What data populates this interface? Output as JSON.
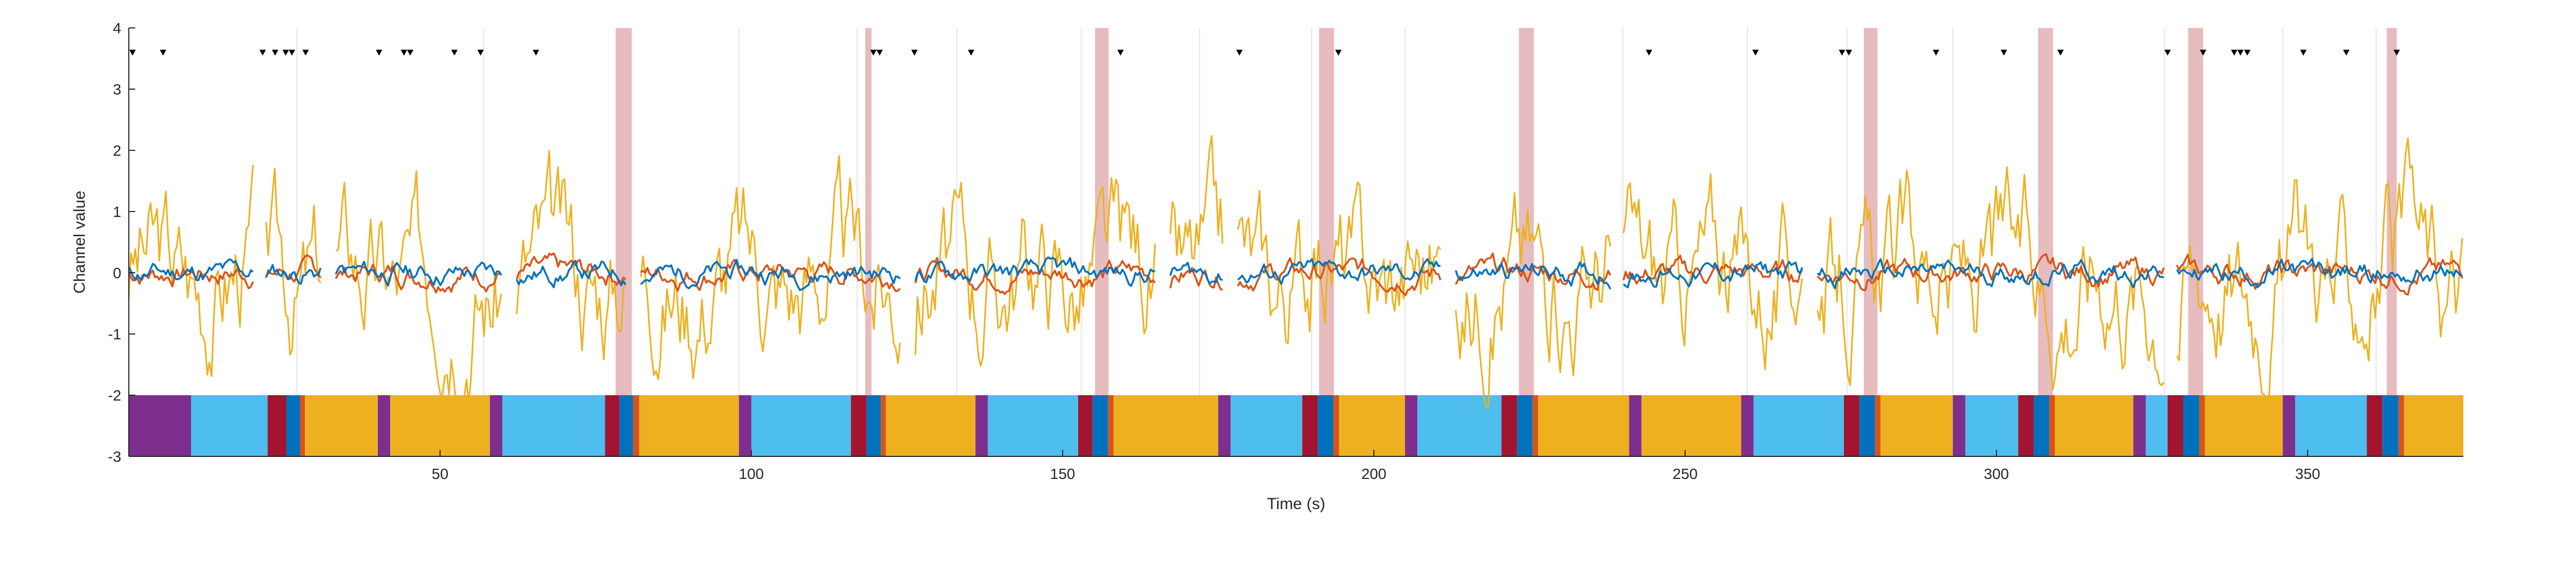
{
  "chart_data": {
    "type": "line",
    "xlabel": "Time (s)",
    "ylabel": "Channel value",
    "xlim": [
      0,
      375
    ],
    "ylim": [
      -3,
      4
    ],
    "x_ticks": [
      50,
      100,
      150,
      200,
      250,
      300,
      350
    ],
    "y_ticks": [
      4,
      3,
      2,
      1,
      0,
      -1,
      -2,
      -3
    ],
    "grid": "vertical",
    "colors": {
      "blue": "#0072BD",
      "orange": "#D95319",
      "yellow": "#EDB120",
      "highlight": "#E6B8BC",
      "state_purple": "#7E2F8E",
      "state_lightblue": "#4DBEEE",
      "state_crimson": "#A2142F",
      "state_darkblue": "#0072BD",
      "state_orange": "#D95319",
      "state_yellow": "#EDB120"
    },
    "series": [
      {
        "color": "#EDB120",
        "amplitude": 1.0,
        "seed": 3
      },
      {
        "color": "#D95319",
        "amplitude": 0.22,
        "seed": 7
      },
      {
        "color": "#0072BD",
        "amplitude": 0.2,
        "seed": 11
      }
    ],
    "vertical_gridlines_x": [
      27,
      57,
      79,
      98,
      117,
      133,
      153,
      172,
      190,
      205,
      224,
      240,
      260,
      276,
      293,
      308,
      327,
      346,
      361
    ],
    "highlight_bands": [
      [
        78.2,
        80.8
      ],
      [
        118.3,
        119.3
      ],
      [
        155.2,
        157.4
      ],
      [
        191.2,
        193.6
      ],
      [
        223.3,
        225.7
      ],
      [
        278.7,
        280.9
      ],
      [
        306.7,
        309.1
      ],
      [
        330.8,
        333.2
      ],
      [
        362.7,
        364.3
      ]
    ],
    "event_markers_x": [
      0.6,
      5.5,
      21.5,
      23.5,
      25.2,
      26.2,
      28.4,
      40.2,
      44.2,
      45.2,
      52.3,
      56.5,
      65.4,
      119.6,
      120.6,
      126.2,
      135.3,
      159.3,
      178.4,
      194.3,
      244.2,
      261.3,
      275.2,
      276.3,
      290.3,
      301.2,
      310.3,
      327.5,
      333.2,
      338.2,
      339.2,
      340.3,
      349.3,
      356.2,
      364.3
    ],
    "state_bar": {
      "y_range": [
        -3,
        -2
      ],
      "segments": [
        {
          "start": 0,
          "end": 10,
          "state": "purple"
        },
        {
          "start": 10,
          "end": 22.3,
          "state": "lightblue"
        },
        {
          "start": 22.3,
          "end": 25.3,
          "state": "crimson"
        },
        {
          "start": 25.3,
          "end": 27.5,
          "state": "darkblue"
        },
        {
          "start": 27.5,
          "end": 28.3,
          "state": "orange"
        },
        {
          "start": 28.3,
          "end": 40,
          "state": "yellow"
        },
        {
          "start": 40,
          "end": 42,
          "state": "purple"
        },
        {
          "start": 42,
          "end": 58,
          "state": "yellow"
        },
        {
          "start": 58,
          "end": 60,
          "state": "purple"
        },
        {
          "start": 60,
          "end": 76.5,
          "state": "lightblue"
        },
        {
          "start": 76.5,
          "end": 78.8,
          "state": "crimson"
        },
        {
          "start": 78.8,
          "end": 81,
          "state": "darkblue"
        },
        {
          "start": 81,
          "end": 82,
          "state": "orange"
        },
        {
          "start": 82,
          "end": 98,
          "state": "yellow"
        },
        {
          "start": 98,
          "end": 100,
          "state": "purple"
        },
        {
          "start": 100,
          "end": 116,
          "state": "lightblue"
        },
        {
          "start": 116,
          "end": 118.5,
          "state": "crimson"
        },
        {
          "start": 118.5,
          "end": 120.8,
          "state": "darkblue"
        },
        {
          "start": 120.8,
          "end": 121.6,
          "state": "orange"
        },
        {
          "start": 121.6,
          "end": 136,
          "state": "yellow"
        },
        {
          "start": 136,
          "end": 138,
          "state": "purple"
        },
        {
          "start": 138,
          "end": 152.5,
          "state": "lightblue"
        },
        {
          "start": 152.5,
          "end": 154.8,
          "state": "crimson"
        },
        {
          "start": 154.8,
          "end": 157.3,
          "state": "darkblue"
        },
        {
          "start": 157.3,
          "end": 158.2,
          "state": "orange"
        },
        {
          "start": 158.2,
          "end": 175,
          "state": "yellow"
        },
        {
          "start": 175,
          "end": 177,
          "state": "purple"
        },
        {
          "start": 177,
          "end": 188.5,
          "state": "lightblue"
        },
        {
          "start": 188.5,
          "end": 191,
          "state": "crimson"
        },
        {
          "start": 191,
          "end": 193.5,
          "state": "darkblue"
        },
        {
          "start": 193.5,
          "end": 194.4,
          "state": "orange"
        },
        {
          "start": 194.4,
          "end": 205,
          "state": "yellow"
        },
        {
          "start": 205,
          "end": 207,
          "state": "purple"
        },
        {
          "start": 207,
          "end": 220.5,
          "state": "lightblue"
        },
        {
          "start": 220.5,
          "end": 223,
          "state": "crimson"
        },
        {
          "start": 223,
          "end": 225.5,
          "state": "darkblue"
        },
        {
          "start": 225.5,
          "end": 226.4,
          "state": "orange"
        },
        {
          "start": 226.4,
          "end": 241,
          "state": "yellow"
        },
        {
          "start": 241,
          "end": 243,
          "state": "purple"
        },
        {
          "start": 243,
          "end": 259,
          "state": "yellow"
        },
        {
          "start": 259,
          "end": 261,
          "state": "purple"
        },
        {
          "start": 261,
          "end": 275.5,
          "state": "lightblue"
        },
        {
          "start": 275.5,
          "end": 278,
          "state": "crimson"
        },
        {
          "start": 278,
          "end": 280.5,
          "state": "darkblue"
        },
        {
          "start": 280.5,
          "end": 281.4,
          "state": "orange"
        },
        {
          "start": 281.4,
          "end": 293,
          "state": "yellow"
        },
        {
          "start": 293,
          "end": 295,
          "state": "purple"
        },
        {
          "start": 295,
          "end": 303.5,
          "state": "lightblue"
        },
        {
          "start": 303.5,
          "end": 306,
          "state": "crimson"
        },
        {
          "start": 306,
          "end": 308.5,
          "state": "darkblue"
        },
        {
          "start": 308.5,
          "end": 309.4,
          "state": "orange"
        },
        {
          "start": 309.4,
          "end": 322,
          "state": "yellow"
        },
        {
          "start": 322,
          "end": 324,
          "state": "purple"
        },
        {
          "start": 324,
          "end": 327.5,
          "state": "lightblue"
        },
        {
          "start": 327.5,
          "end": 330,
          "state": "crimson"
        },
        {
          "start": 330,
          "end": 332.6,
          "state": "darkblue"
        },
        {
          "start": 332.6,
          "end": 333.5,
          "state": "orange"
        },
        {
          "start": 333.5,
          "end": 346,
          "state": "yellow"
        },
        {
          "start": 346,
          "end": 348,
          "state": "purple"
        },
        {
          "start": 348,
          "end": 359.5,
          "state": "lightblue"
        },
        {
          "start": 359.5,
          "end": 362,
          "state": "crimson"
        },
        {
          "start": 362,
          "end": 364.6,
          "state": "darkblue"
        },
        {
          "start": 364.6,
          "end": 365.5,
          "state": "orange"
        },
        {
          "start": 365.5,
          "end": 375,
          "state": "yellow"
        }
      ]
    }
  }
}
